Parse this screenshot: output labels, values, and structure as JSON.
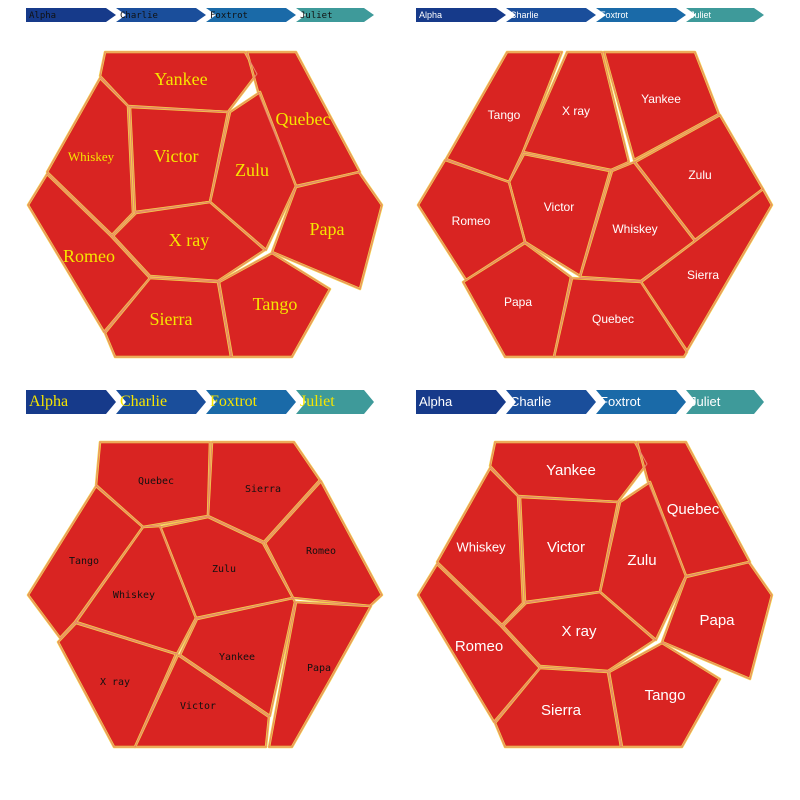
{
  "chart_data": [
    {
      "type": "voronoi-treemap",
      "breadcrumb": [
        "Alpha",
        "Charlie",
        "Foxtrot",
        "Juliet"
      ],
      "breadcrumb_colors": [
        "#163a8a",
        "#1a4e9b",
        "#1a6aa8",
        "#3e9a9a"
      ],
      "cell_color": "#d92422",
      "border_color": "#f2d24a",
      "cells": [
        "Yankee",
        "Quebec",
        "Whiskey",
        "Victor",
        "Zulu",
        "Papa",
        "X ray",
        "Romeo",
        "Tango",
        "Sierra"
      ]
    },
    {
      "type": "voronoi-treemap",
      "breadcrumb": [
        "Alpha",
        "Charlie",
        "Foxtrot",
        "Juliet"
      ],
      "breadcrumb_colors": [
        "#163a8a",
        "#1a4e9b",
        "#1a6aa8",
        "#3e9a9a"
      ],
      "cell_color": "#d92422",
      "border_color": "#f2d24a",
      "cells": [
        "Tango",
        "X ray",
        "Yankee",
        "Zulu",
        "Victor",
        "Romeo",
        "Whiskey",
        "Sierra",
        "Papa",
        "Quebec"
      ]
    },
    {
      "type": "voronoi-treemap",
      "breadcrumb": [
        "Alpha",
        "Charlie",
        "Foxtrot",
        "Juliet"
      ],
      "breadcrumb_colors": [
        "#163a8a",
        "#1a4e9b",
        "#1a6aa8",
        "#3e9a9a"
      ],
      "cell_color": "#d92422",
      "border_color": "#f2d24a",
      "cells": [
        "Quebec",
        "Sierra",
        "Tango",
        "Romeo",
        "Zulu",
        "Whiskey",
        "Yankee",
        "Papa",
        "X ray",
        "Victor"
      ]
    },
    {
      "type": "voronoi-treemap",
      "breadcrumb": [
        "Alpha",
        "Charlie",
        "Foxtrot",
        "Juliet"
      ],
      "breadcrumb_colors": [
        "#163a8a",
        "#1a4e9b",
        "#1a6aa8",
        "#3e9a9a"
      ],
      "cell_color": "#d92422",
      "border_color": "#f2d24a",
      "cells": [
        "Yankee",
        "Quebec",
        "Whiskey",
        "Victor",
        "Zulu",
        "Papa",
        "X ray",
        "Romeo",
        "Tango",
        "Sierra"
      ]
    }
  ]
}
